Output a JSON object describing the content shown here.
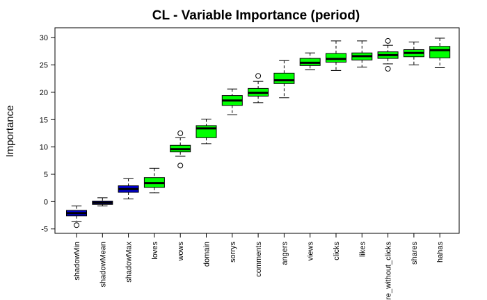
{
  "chart_data": {
    "type": "boxplot",
    "title": "CL - Variable Importance (period)",
    "xlabel": "",
    "ylabel": "Importance",
    "ylim": [
      -5.8,
      31.8
    ],
    "yticks": [
      -5,
      0,
      5,
      10,
      15,
      20,
      25,
      30
    ],
    "grid": false,
    "colors": {
      "shadow": "#0000cd",
      "accepted": "#00ff00",
      "median": "#000000"
    },
    "categories": [
      "shadowMin",
      "shadowMean",
      "shadowMax",
      "loves",
      "wows",
      "domain",
      "sorrys",
      "comments",
      "angers",
      "views",
      "clicks",
      "likes",
      "share_without_clicks",
      "shares",
      "hahas"
    ],
    "boxes": [
      {
        "label": "shadowMin",
        "group": "shadow",
        "whisker_low": -3.6,
        "q1": -2.6,
        "median": -2.1,
        "q3": -1.6,
        "whisker_high": -0.8,
        "outliers": [
          -4.3
        ]
      },
      {
        "label": "shadowMean",
        "group": "shadow",
        "whisker_low": -0.8,
        "q1": -0.5,
        "median": -0.2,
        "q3": 0.1,
        "whisker_high": 0.7,
        "outliers": []
      },
      {
        "label": "shadowMax",
        "group": "shadow",
        "whisker_low": 0.5,
        "q1": 1.7,
        "median": 2.3,
        "q3": 2.9,
        "whisker_high": 4.2,
        "outliers": []
      },
      {
        "label": "loves",
        "group": "accepted",
        "whisker_low": 1.6,
        "q1": 2.6,
        "median": 3.4,
        "q3": 4.4,
        "whisker_high": 6.1,
        "outliers": []
      },
      {
        "label": "wows",
        "group": "accepted",
        "whisker_low": 8.3,
        "q1": 9.1,
        "median": 9.6,
        "q3": 10.3,
        "whisker_high": 11.7,
        "outliers": [
          12.5,
          6.6
        ]
      },
      {
        "label": "domain",
        "group": "accepted",
        "whisker_low": 10.6,
        "q1": 11.7,
        "median": 13.4,
        "q3": 13.9,
        "whisker_high": 15.1,
        "outliers": []
      },
      {
        "label": "sorrys",
        "group": "accepted",
        "whisker_low": 15.9,
        "q1": 17.6,
        "median": 18.5,
        "q3": 19.4,
        "whisker_high": 20.6,
        "outliers": []
      },
      {
        "label": "comments",
        "group": "accepted",
        "whisker_low": 18.1,
        "q1": 19.3,
        "median": 19.9,
        "q3": 20.7,
        "whisker_high": 22.0,
        "outliers": [
          23.0
        ]
      },
      {
        "label": "angers",
        "group": "accepted",
        "whisker_low": 19.0,
        "q1": 21.6,
        "median": 22.2,
        "q3": 23.5,
        "whisker_high": 25.8,
        "outliers": []
      },
      {
        "label": "views",
        "group": "accepted",
        "whisker_low": 24.1,
        "q1": 24.9,
        "median": 25.4,
        "q3": 26.2,
        "whisker_high": 27.2,
        "outliers": []
      },
      {
        "label": "clicks",
        "group": "accepted",
        "whisker_low": 24.0,
        "q1": 25.5,
        "median": 26.1,
        "q3": 27.1,
        "whisker_high": 29.4,
        "outliers": []
      },
      {
        "label": "likes",
        "group": "accepted",
        "whisker_low": 24.6,
        "q1": 25.9,
        "median": 26.6,
        "q3": 27.2,
        "whisker_high": 29.4,
        "outliers": []
      },
      {
        "label": "share_without_clicks",
        "group": "accepted",
        "whisker_low": 25.2,
        "q1": 26.2,
        "median": 26.8,
        "q3": 27.4,
        "whisker_high": 28.6,
        "outliers": [
          29.4,
          24.3
        ]
      },
      {
        "label": "shares",
        "group": "accepted",
        "whisker_low": 25.0,
        "q1": 26.5,
        "median": 27.2,
        "q3": 27.8,
        "whisker_high": 29.2,
        "outliers": []
      },
      {
        "label": "hahas",
        "group": "accepted",
        "whisker_low": 24.5,
        "q1": 26.3,
        "median": 27.7,
        "q3": 28.4,
        "whisker_high": 29.9,
        "outliers": []
      }
    ]
  }
}
